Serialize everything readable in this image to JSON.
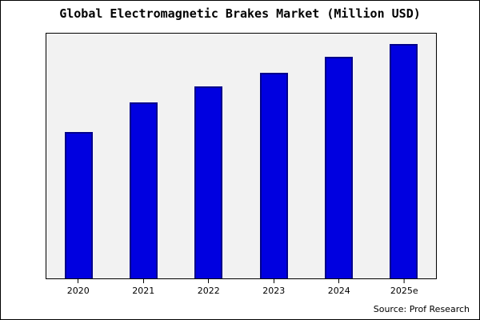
{
  "title": "Global Electromagnetic Brakes Market (Million USD)",
  "source": "Source: Prof Research",
  "chart_data": {
    "type": "bar",
    "title": "Global Electromagnetic Brakes Market (Million USD)",
    "categories": [
      "2020",
      "2021",
      "2022",
      "2023",
      "2024",
      "2025e"
    ],
    "values": [
      100,
      120,
      131,
      140,
      151,
      160
    ],
    "xlabel": "",
    "ylabel": "",
    "ylim": [
      0,
      167
    ],
    "grid": false,
    "legend": false,
    "bar_color": "#0000e0",
    "bar_border_color": "#00008b",
    "plot_background": "#f2f2f2",
    "annotations": [
      "Source: Prof Research"
    ]
  }
}
